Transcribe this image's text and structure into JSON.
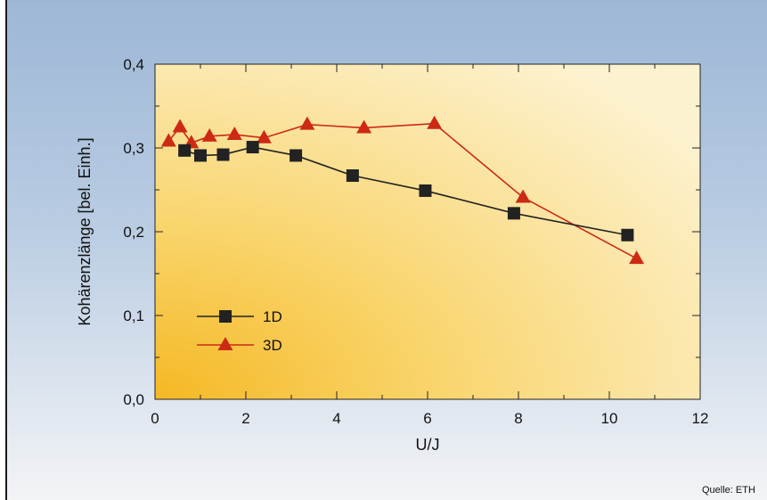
{
  "source": "Quelle: ETH",
  "chart_data": {
    "type": "line",
    "title": "",
    "xlabel": "U/J",
    "ylabel": "Kohärenzlänge [bel. Einh.]",
    "xlim": [
      0,
      12
    ],
    "ylim": [
      0,
      0.4
    ],
    "x_ticks": [
      0,
      2,
      4,
      6,
      8,
      10,
      12
    ],
    "x_tick_labels": [
      "0",
      "2",
      "4",
      "6",
      "8",
      "10",
      "12"
    ],
    "y_ticks": [
      0,
      0.1,
      0.2,
      0.3,
      0.4
    ],
    "y_tick_labels": [
      "0,0",
      "0,1",
      "0,2",
      "0,3",
      "0,4"
    ],
    "grid": false,
    "legend_position": "lower-left",
    "series": [
      {
        "name": "1D",
        "marker": "square",
        "color": "#222222",
        "x": [
          0.65,
          1.0,
          1.5,
          2.15,
          3.1,
          4.35,
          5.95,
          7.9,
          10.4
        ],
        "y": [
          0.297,
          0.291,
          0.292,
          0.301,
          0.291,
          0.267,
          0.249,
          0.222,
          0.196
        ]
      },
      {
        "name": "3D",
        "marker": "triangle",
        "color": "#cc2a14",
        "x": [
          0.3,
          0.55,
          0.8,
          1.2,
          1.75,
          2.4,
          3.35,
          4.6,
          6.15,
          8.1,
          10.6
        ],
        "y": [
          0.308,
          0.325,
          0.306,
          0.314,
          0.316,
          0.312,
          0.328,
          0.324,
          0.329,
          0.241,
          0.168
        ]
      }
    ]
  }
}
